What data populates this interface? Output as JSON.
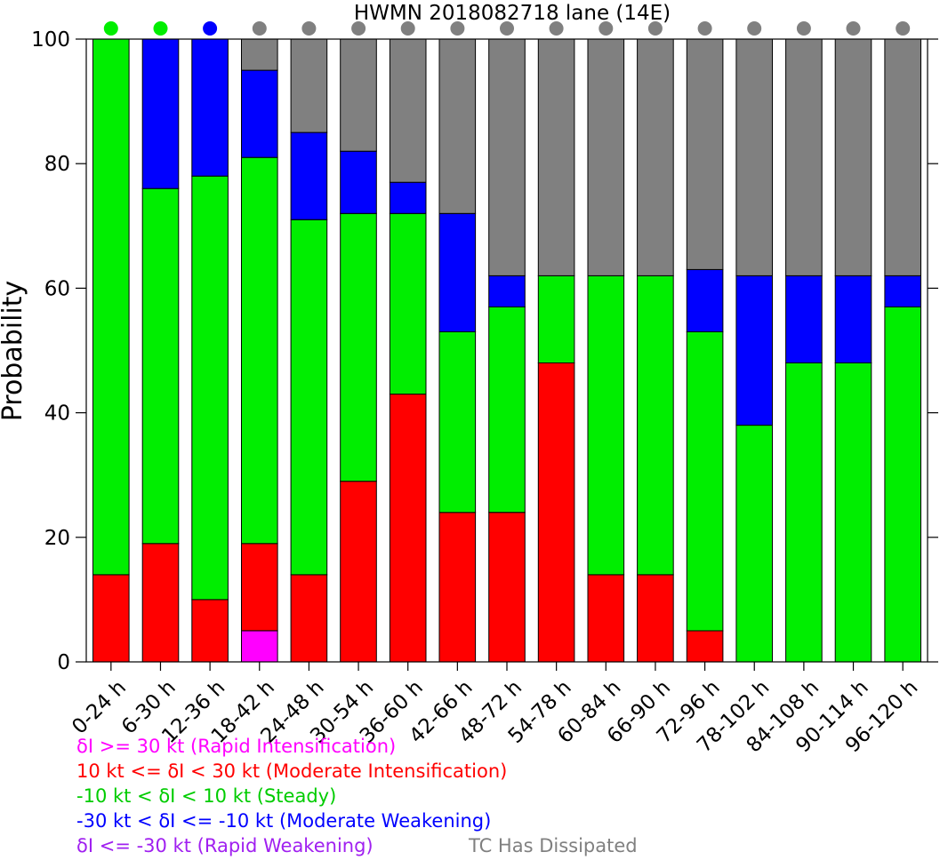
{
  "chart_data": {
    "type": "bar",
    "stacked": true,
    "title": "HWMN 2018082718 lane (14E)",
    "xlabel": "",
    "ylabel": "Probability",
    "ylim": [
      0,
      100
    ],
    "yticks": [
      0,
      20,
      40,
      60,
      80,
      100
    ],
    "grid": false,
    "legend_position": "bottom-left",
    "categories": [
      "0-24 h",
      "6-30 h",
      "12-36 h",
      "18-42 h",
      "24-48 h",
      "30-54 h",
      "36-60 h",
      "42-66 h",
      "48-72 h",
      "54-78 h",
      "60-84 h",
      "66-90 h",
      "72-96 h",
      "78-102 h",
      "84-108 h",
      "90-114 h",
      "96-120 h"
    ],
    "series": [
      {
        "name": "δI >= 30 kt (Rapid Intensification)",
        "color": "#ff00ff",
        "values": [
          0,
          0,
          0,
          5,
          0,
          0,
          0,
          0,
          0,
          0,
          0,
          0,
          0,
          0,
          0,
          0,
          0
        ]
      },
      {
        "name": "10 kt <= δI < 30 kt (Moderate Intensification)",
        "color": "#ff0000",
        "values": [
          14,
          19,
          10,
          14,
          14,
          29,
          43,
          24,
          24,
          48,
          14,
          14,
          5,
          0,
          0,
          0,
          0
        ]
      },
      {
        "name": "-10 kt < δI < 10 kt (Steady)",
        "color": "#00ee00",
        "values": [
          86,
          57,
          68,
          62,
          57,
          43,
          29,
          29,
          33,
          14,
          48,
          48,
          48,
          38,
          48,
          48,
          57
        ]
      },
      {
        "name": "-30 kt < δI <= -10 kt (Moderate Weakening)",
        "color": "#0000ff",
        "values": [
          0,
          24,
          22,
          14,
          14,
          10,
          5,
          19,
          5,
          0,
          0,
          0,
          10,
          24,
          14,
          14,
          5
        ]
      },
      {
        "name": "δI <= -30 kt (Rapid Weakening)",
        "color": "#a020f0",
        "values": [
          0,
          0,
          0,
          0,
          0,
          0,
          0,
          0,
          0,
          0,
          0,
          0,
          0,
          0,
          0,
          0,
          0
        ]
      },
      {
        "name": "TC Has Dissipated",
        "color": "#808080",
        "values": [
          0,
          0,
          0,
          5,
          15,
          18,
          23,
          28,
          38,
          38,
          38,
          38,
          37,
          38,
          38,
          38,
          38
        ]
      }
    ],
    "indicator_colors": [
      "#00ee00",
      "#00ee00",
      "#0000ff",
      "#808080",
      "#808080",
      "#808080",
      "#808080",
      "#808080",
      "#808080",
      "#808080",
      "#808080",
      "#808080",
      "#808080",
      "#808080",
      "#808080",
      "#808080",
      "#808080"
    ]
  }
}
